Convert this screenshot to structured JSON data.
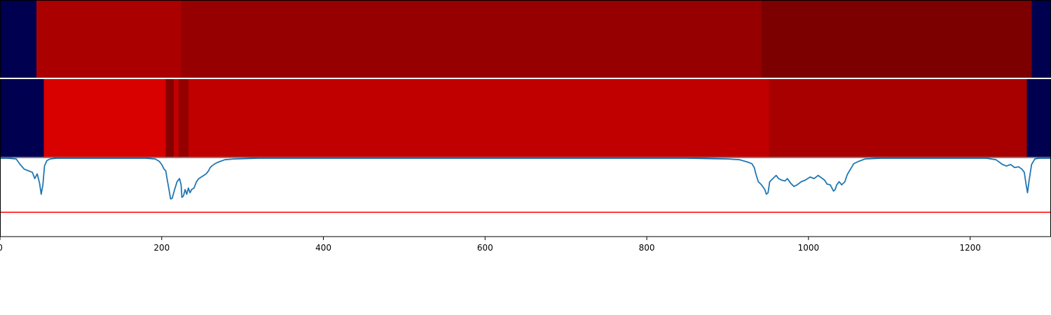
{
  "chart_data": {
    "type": "heatmap",
    "x_range": [
      0,
      1300
    ],
    "x_ticks": [
      0,
      200,
      400,
      600,
      800,
      1000,
      1200
    ],
    "x_tick_labels": [
      "0",
      "200",
      "400",
      "600",
      "800",
      "1000",
      "1200"
    ],
    "colors": {
      "background": "#000050",
      "line": "#1f77b4",
      "threshold": "#ff0000",
      "axis": "#000000"
    },
    "tracks": [
      {
        "segments": [
          {
            "start": 0,
            "end": 45,
            "color": "#000050"
          },
          {
            "start": 45,
            "end": 224,
            "color": "#ab0000"
          },
          {
            "start": 224,
            "end": 942,
            "color": "#960000"
          },
          {
            "start": 942,
            "end": 1276,
            "color": "#7c0000"
          },
          {
            "start": 1276,
            "end": 1300,
            "color": "#000050"
          }
        ]
      },
      {
        "segments": [
          {
            "start": 0,
            "end": 54,
            "color": "#000050"
          },
          {
            "start": 54,
            "end": 205,
            "color": "#d90000"
          },
          {
            "start": 205,
            "end": 215,
            "color": "#860000"
          },
          {
            "start": 215,
            "end": 221,
            "color": "#c00000"
          },
          {
            "start": 221,
            "end": 233,
            "color": "#940000"
          },
          {
            "start": 233,
            "end": 951,
            "color": "#c00000"
          },
          {
            "start": 951,
            "end": 1270,
            "color": "#a80000"
          },
          {
            "start": 1270,
            "end": 1300,
            "color": "#000050"
          }
        ]
      }
    ],
    "line_series": {
      "y_range": [
        0,
        1
      ],
      "threshold": 0.31,
      "points": [
        [
          0,
          1.0
        ],
        [
          10,
          1.0
        ],
        [
          20,
          0.99
        ],
        [
          25,
          0.92
        ],
        [
          30,
          0.86
        ],
        [
          35,
          0.84
        ],
        [
          40,
          0.82
        ],
        [
          43,
          0.74
        ],
        [
          46,
          0.8
        ],
        [
          49,
          0.68
        ],
        [
          51,
          0.54
        ],
        [
          53,
          0.66
        ],
        [
          55,
          0.9
        ],
        [
          58,
          0.97
        ],
        [
          62,
          0.99
        ],
        [
          70,
          1.0
        ],
        [
          100,
          1.0
        ],
        [
          180,
          1.0
        ],
        [
          192,
          0.99
        ],
        [
          197,
          0.96
        ],
        [
          200,
          0.92
        ],
        [
          203,
          0.86
        ],
        [
          205,
          0.84
        ],
        [
          207,
          0.72
        ],
        [
          209,
          0.6
        ],
        [
          211,
          0.48
        ],
        [
          213,
          0.49
        ],
        [
          216,
          0.6
        ],
        [
          219,
          0.7
        ],
        [
          222,
          0.74
        ],
        [
          224,
          0.66
        ],
        [
          225,
          0.5
        ],
        [
          227,
          0.52
        ],
        [
          229,
          0.6
        ],
        [
          231,
          0.54
        ],
        [
          233,
          0.62
        ],
        [
          235,
          0.56
        ],
        [
          237,
          0.6
        ],
        [
          240,
          0.62
        ],
        [
          243,
          0.7
        ],
        [
          246,
          0.74
        ],
        [
          249,
          0.76
        ],
        [
          252,
          0.78
        ],
        [
          255,
          0.8
        ],
        [
          258,
          0.84
        ],
        [
          260,
          0.88
        ],
        [
          262,
          0.9
        ],
        [
          266,
          0.93
        ],
        [
          270,
          0.95
        ],
        [
          278,
          0.98
        ],
        [
          290,
          0.99
        ],
        [
          320,
          1.0
        ],
        [
          600,
          1.0
        ],
        [
          850,
          1.0
        ],
        [
          900,
          0.99
        ],
        [
          915,
          0.98
        ],
        [
          925,
          0.95
        ],
        [
          930,
          0.93
        ],
        [
          933,
          0.88
        ],
        [
          935,
          0.8
        ],
        [
          938,
          0.7
        ],
        [
          942,
          0.66
        ],
        [
          946,
          0.6
        ],
        [
          948,
          0.54
        ],
        [
          950,
          0.56
        ],
        [
          952,
          0.7
        ],
        [
          956,
          0.74
        ],
        [
          960,
          0.78
        ],
        [
          963,
          0.74
        ],
        [
          967,
          0.72
        ],
        [
          971,
          0.71
        ],
        [
          974,
          0.74
        ],
        [
          978,
          0.68
        ],
        [
          982,
          0.64
        ],
        [
          986,
          0.66
        ],
        [
          991,
          0.7
        ],
        [
          996,
          0.72
        ],
        [
          1002,
          0.76
        ],
        [
          1007,
          0.74
        ],
        [
          1012,
          0.78
        ],
        [
          1016,
          0.75
        ],
        [
          1020,
          0.72
        ],
        [
          1023,
          0.67
        ],
        [
          1027,
          0.66
        ],
        [
          1031,
          0.58
        ],
        [
          1033,
          0.6
        ],
        [
          1035,
          0.66
        ],
        [
          1038,
          0.7
        ],
        [
          1041,
          0.66
        ],
        [
          1045,
          0.7
        ],
        [
          1048,
          0.79
        ],
        [
          1052,
          0.86
        ],
        [
          1056,
          0.93
        ],
        [
          1062,
          0.96
        ],
        [
          1070,
          0.99
        ],
        [
          1090,
          1.0
        ],
        [
          1220,
          1.0
        ],
        [
          1232,
          0.98
        ],
        [
          1240,
          0.92
        ],
        [
          1245,
          0.9
        ],
        [
          1250,
          0.92
        ],
        [
          1255,
          0.88
        ],
        [
          1260,
          0.89
        ],
        [
          1264,
          0.86
        ],
        [
          1267,
          0.82
        ],
        [
          1269,
          0.68
        ],
        [
          1271,
          0.56
        ],
        [
          1273,
          0.72
        ],
        [
          1276,
          0.92
        ],
        [
          1280,
          0.99
        ],
        [
          1285,
          1.0
        ],
        [
          1300,
          1.0
        ]
      ]
    }
  }
}
